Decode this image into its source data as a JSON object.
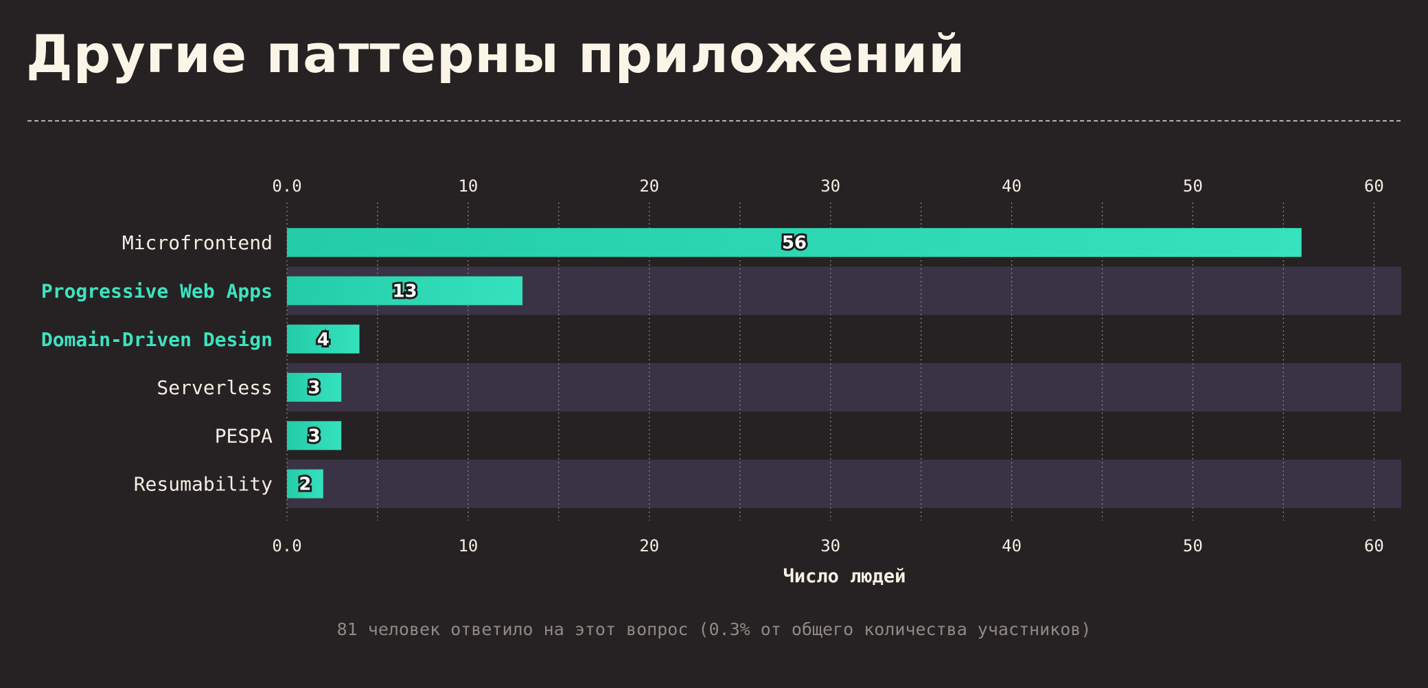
{
  "title": "Другие паттерны приложений",
  "footnote": "81 человек ответило на этот вопрос (0.3% от общего количества участников)",
  "colors": {
    "background": "#262223",
    "bar": "#2dd8b3",
    "stripe": "#3a3346",
    "highlight_label": "#3de3c0",
    "text": "#f3eee4"
  },
  "chart_data": {
    "type": "bar",
    "orientation": "horizontal",
    "categories": [
      "Microfrontend",
      "Progressive Web Apps",
      "Domain-Driven Design",
      "Serverless",
      "PESPA",
      "Resumability"
    ],
    "values": [
      56,
      13,
      4,
      3,
      3,
      2
    ],
    "highlighted_categories": [
      "Progressive Web Apps",
      "Domain-Driven Design"
    ],
    "xlabel": "Число людей",
    "xlim": [
      0,
      61.5
    ],
    "xticks": [
      "0.0",
      "10",
      "20",
      "30",
      "40",
      "50",
      "60"
    ],
    "xtick_values": [
      0,
      10,
      20,
      30,
      40,
      50,
      60
    ],
    "axis_position": "top-and-bottom",
    "grid": true,
    "grid_minor_step": 5,
    "alternating_row_stripes": true,
    "data_labels": true
  }
}
